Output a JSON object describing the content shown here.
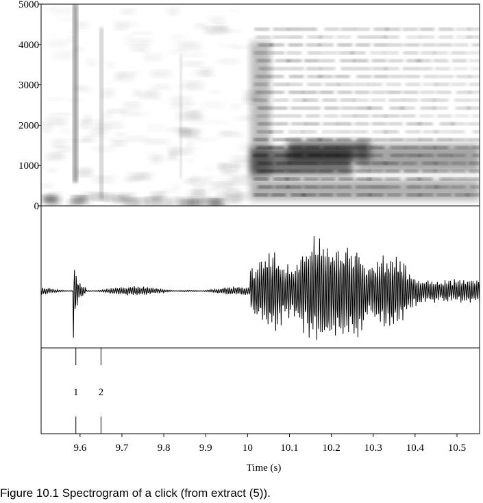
{
  "chart_data": {
    "type": "spectrogram",
    "xlabel": "Time (s)",
    "xlim": [
      9.507,
      10.554
    ],
    "xticks": [
      9.6,
      9.7,
      9.8,
      9.9,
      10,
      10.1,
      10.2,
      10.3,
      10.4,
      10.5
    ],
    "ylim": [
      0,
      5000
    ],
    "yticks": [
      0,
      1000,
      2000,
      3000,
      4000,
      5000
    ],
    "annotations": [
      {
        "time": 9.59,
        "label": "1"
      },
      {
        "time": 9.65,
        "label": "2"
      }
    ]
  },
  "caption": "Figure 10.1  Spectrogram of a click (from extract (5))."
}
